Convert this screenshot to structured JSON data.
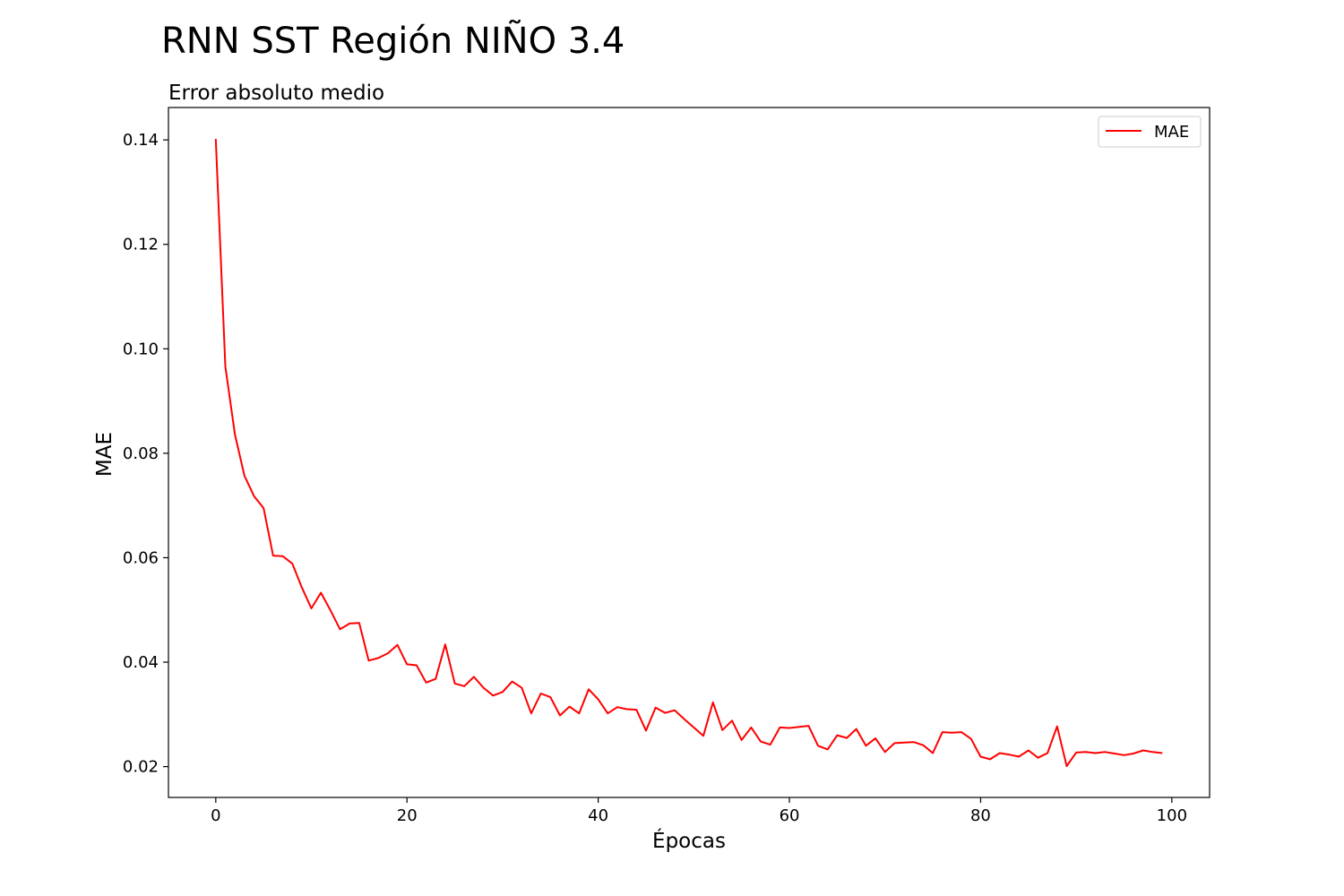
{
  "chart_data": {
    "type": "line",
    "suptitle": "RNN SST Región NIÑO 3.4",
    "title": "Error absoluto medio",
    "xlabel": "Épocas",
    "ylabel": "MAE",
    "xlim": [
      -4.95,
      103.95
    ],
    "ylim": [
      0.0141,
      0.1462
    ],
    "x_ticks": [
      0,
      20,
      40,
      60,
      80,
      100
    ],
    "y_ticks": [
      0.02,
      0.04,
      0.06,
      0.08,
      0.1,
      0.12,
      0.14
    ],
    "y_tick_labels": [
      "0.02",
      "0.04",
      "0.06",
      "0.08",
      "0.10",
      "0.12",
      "0.14"
    ],
    "grid": false,
    "legend": {
      "position": "top-right"
    },
    "series": [
      {
        "name": "MAE",
        "color": "#ff0000",
        "x": [
          0,
          1,
          2,
          3,
          4,
          5,
          6,
          7,
          8,
          9,
          10,
          11,
          12,
          13,
          14,
          15,
          16,
          17,
          18,
          19,
          20,
          21,
          22,
          23,
          24,
          25,
          26,
          27,
          28,
          29,
          30,
          31,
          32,
          33,
          34,
          35,
          36,
          37,
          38,
          39,
          40,
          41,
          42,
          43,
          44,
          45,
          46,
          47,
          48,
          49,
          50,
          51,
          52,
          53,
          54,
          55,
          56,
          57,
          58,
          59,
          60,
          61,
          62,
          63,
          64,
          65,
          66,
          67,
          68,
          69,
          70,
          71,
          72,
          73,
          74,
          75,
          76,
          77,
          78,
          79,
          80,
          81,
          82,
          83,
          84,
          85,
          86,
          87,
          88,
          89,
          90,
          91,
          92,
          93,
          94,
          95,
          96,
          97,
          98,
          99
        ],
        "values": [
          0.1402,
          0.0966,
          0.0836,
          0.0757,
          0.0718,
          0.0695,
          0.0604,
          0.0603,
          0.0589,
          0.0543,
          0.0503,
          0.0533,
          0.0499,
          0.0463,
          0.0474,
          0.0475,
          0.0403,
          0.0408,
          0.0417,
          0.0433,
          0.0396,
          0.0394,
          0.0361,
          0.0368,
          0.0434,
          0.0359,
          0.0354,
          0.0372,
          0.0351,
          0.0336,
          0.0343,
          0.0363,
          0.0351,
          0.0302,
          0.034,
          0.0333,
          0.0298,
          0.0315,
          0.0302,
          0.0348,
          0.0329,
          0.0302,
          0.0314,
          0.031,
          0.0309,
          0.0269,
          0.0313,
          0.0303,
          0.0308,
          0.0291,
          0.0275,
          0.0259,
          0.0323,
          0.027,
          0.0288,
          0.0251,
          0.0275,
          0.0248,
          0.0242,
          0.0275,
          0.0274,
          0.0276,
          0.0278,
          0.024,
          0.0233,
          0.026,
          0.0255,
          0.0272,
          0.024,
          0.0254,
          0.0228,
          0.0245,
          0.0246,
          0.0247,
          0.0241,
          0.0226,
          0.0266,
          0.0265,
          0.0266,
          0.0253,
          0.0219,
          0.0214,
          0.0226,
          0.0223,
          0.0219,
          0.0231,
          0.0217,
          0.0226,
          0.0277,
          0.0201,
          0.0227,
          0.0228,
          0.0226,
          0.0228,
          0.0225,
          0.0222,
          0.0225,
          0.0231,
          0.0228,
          0.0226
        ]
      }
    ]
  }
}
